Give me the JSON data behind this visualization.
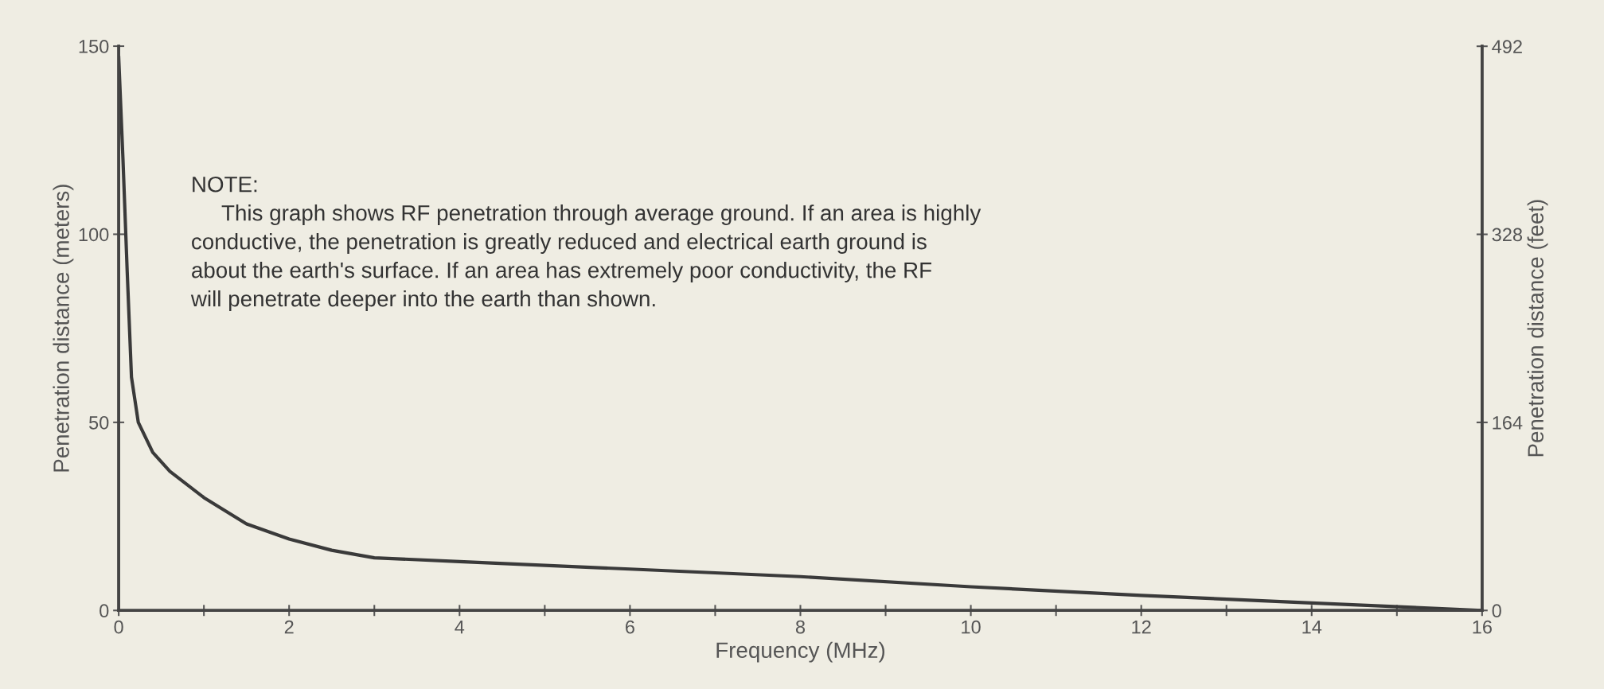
{
  "chart_data": {
    "type": "line",
    "xlabel": "Frequency (MHz)",
    "ylabel": "Penetration distance (meters)",
    "y2label": "Penetration distance (feet)",
    "annotations": [
      "NOTE:\n     This graph shows RF penetration through average ground. If an area is highly\nconductive, the penetration is greatly reduced and electrical earth ground is\nabout the earth's surface. If an area has extremely poor conductivity, the RF\nwill penetrate deeper into the earth than shown."
    ],
    "series": [
      {
        "color": "#3a3a3a",
        "x": [
          0,
          0.05,
          0.1,
          0.15,
          0.23,
          0.4,
          0.6,
          1,
          1.5,
          2,
          2.5,
          3,
          4,
          6,
          8,
          10,
          12,
          14,
          16
        ],
        "values": [
          147,
          120,
          90,
          62,
          50,
          42,
          37,
          30,
          23,
          19,
          16,
          14,
          13,
          11,
          9,
          6.3,
          4,
          2,
          0
        ]
      }
    ],
    "xlim": [
      0,
      16
    ],
    "xticks": [
      0,
      {
        "value": 1,
        "label": null
      },
      2,
      {
        "value": 3,
        "label": null
      },
      4,
      {
        "value": 5,
        "label": null
      },
      6,
      {
        "value": 7,
        "label": null
      },
      8,
      {
        "value": 9,
        "label": null
      },
      10,
      {
        "value": 11,
        "label": null
      },
      12,
      {
        "value": 13,
        "label": null
      },
      14,
      {
        "value": 15,
        "label": null
      },
      16
    ],
    "ylim": [
      0,
      150
    ],
    "yticks": [
      0,
      50,
      100,
      150
    ],
    "y2lim": [
      0,
      492.1
    ],
    "y2ticks": [
      0,
      164,
      328,
      492
    ],
    "grid": false,
    "legend": false,
    "marker": "none",
    "line_style": "solid"
  }
}
